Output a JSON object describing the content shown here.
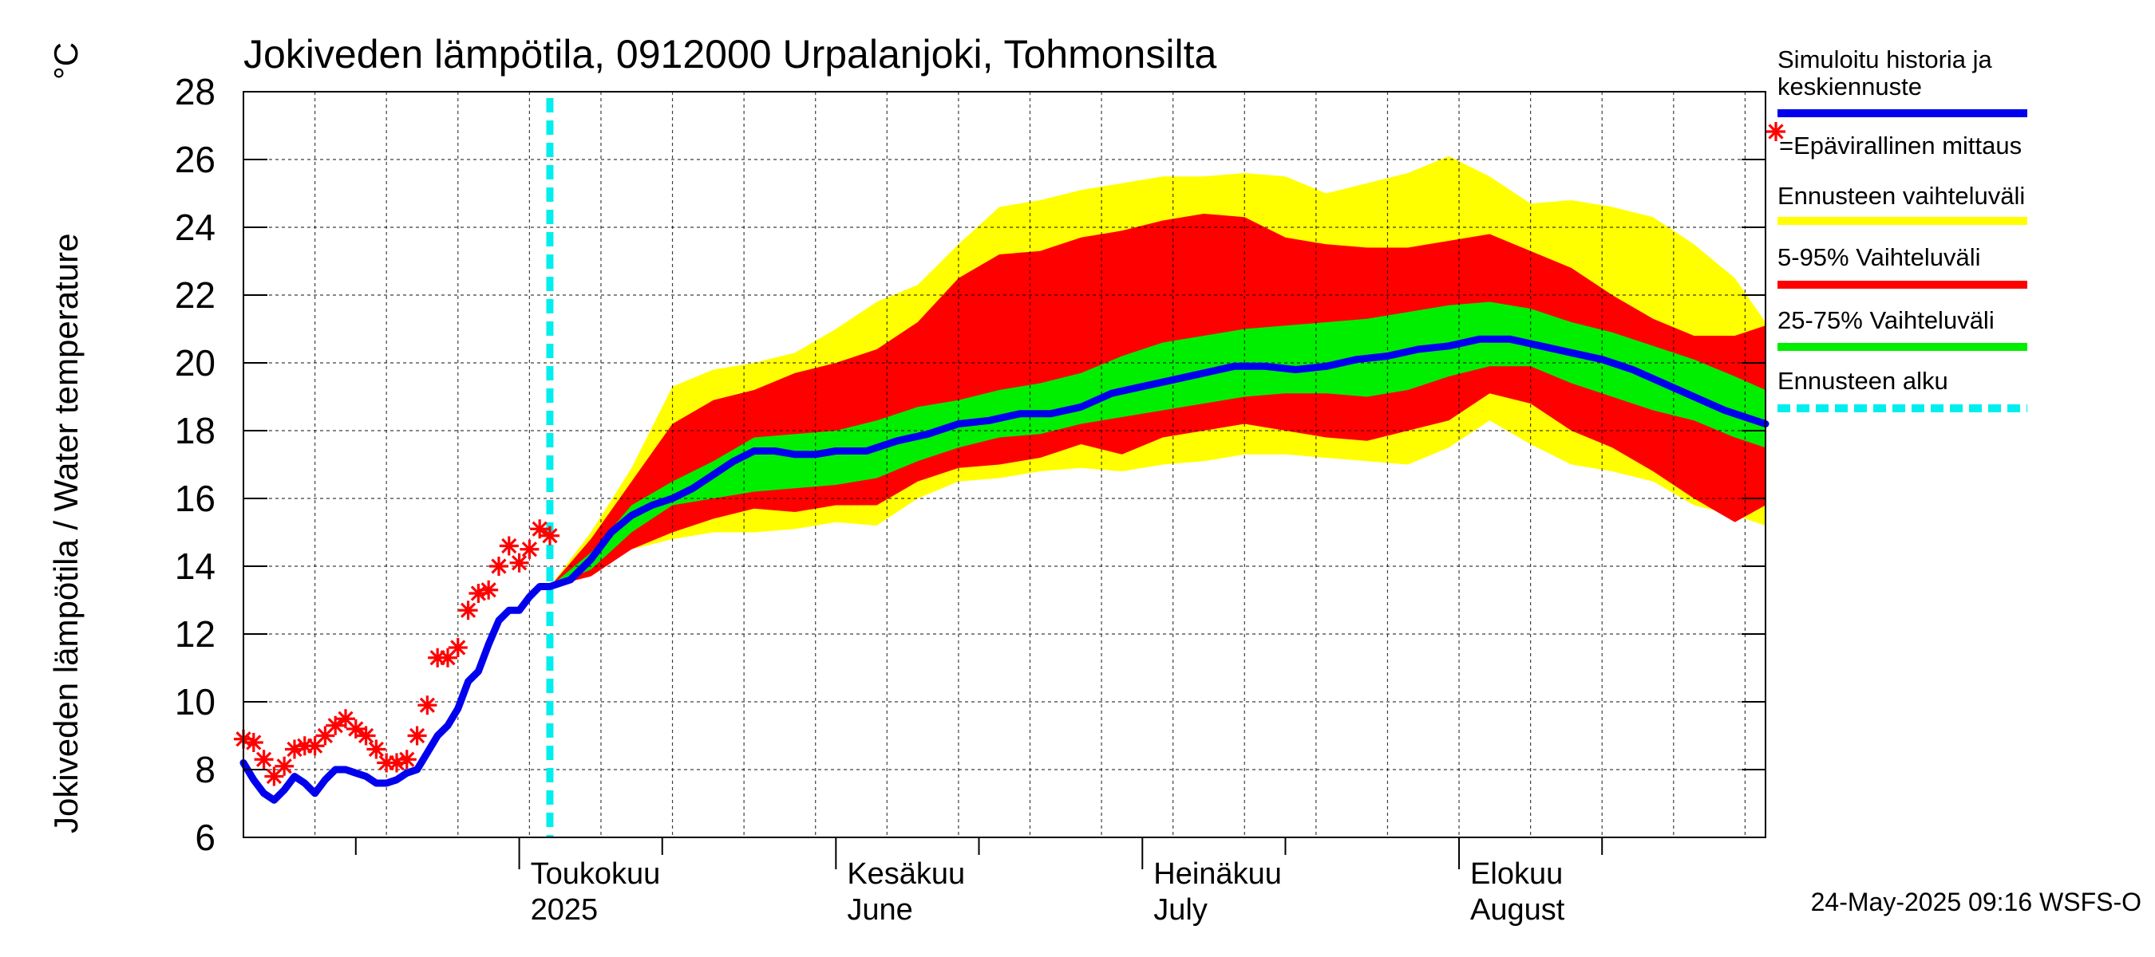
{
  "chart_data": {
    "type": "line",
    "title": "Jokiveden lämpötila, 0912000 Urpalanjoki, Tohmonsilta",
    "ylabel": "Jokiveden lämpötila / Water temperature",
    "yunit": "°C",
    "ylim": [
      6,
      28
    ],
    "yticks": [
      6,
      8,
      10,
      12,
      14,
      16,
      18,
      20,
      22,
      24,
      26,
      28
    ],
    "xlim": [
      "2025-04-04",
      "2025-08-31"
    ],
    "grid": true,
    "month_labels": [
      {
        "date": "2025-05-01",
        "line1": "Toukokuu",
        "line2": "2025"
      },
      {
        "date": "2025-06-01",
        "line1": "Kesäkuu",
        "line2": "June"
      },
      {
        "date": "2025-07-01",
        "line1": "Heinäkuu",
        "line2": "July"
      },
      {
        "date": "2025-08-01",
        "line1": "Elokuu",
        "line2": "August"
      }
    ],
    "forecast_start": "2025-05-04",
    "colors": {
      "median": "#0000ee",
      "obs": "#ff0000",
      "band_full": "#ffff00",
      "band_5_95": "#ff0000",
      "band_25_75": "#00ee00",
      "forecast_line": "#00eeee"
    },
    "observations": [
      [
        "2025-04-04",
        8.9
      ],
      [
        "2025-04-05",
        8.8
      ],
      [
        "2025-04-06",
        8.3
      ],
      [
        "2025-04-07",
        7.8
      ],
      [
        "2025-04-08",
        8.1
      ],
      [
        "2025-04-09",
        8.6
      ],
      [
        "2025-04-10",
        8.7
      ],
      [
        "2025-04-11",
        8.7
      ],
      [
        "2025-04-12",
        9.0
      ],
      [
        "2025-04-13",
        9.3
      ],
      [
        "2025-04-14",
        9.5
      ],
      [
        "2025-04-15",
        9.2
      ],
      [
        "2025-04-16",
        9.0
      ],
      [
        "2025-04-17",
        8.6
      ],
      [
        "2025-04-18",
        8.2
      ],
      [
        "2025-04-19",
        8.2
      ],
      [
        "2025-04-20",
        8.3
      ],
      [
        "2025-04-21",
        9.0
      ],
      [
        "2025-04-22",
        9.9
      ],
      [
        "2025-04-23",
        11.3
      ],
      [
        "2025-04-24",
        11.3
      ],
      [
        "2025-04-25",
        11.6
      ],
      [
        "2025-04-26",
        12.7
      ],
      [
        "2025-04-27",
        13.2
      ],
      [
        "2025-04-28",
        13.3
      ],
      [
        "2025-04-29",
        14.0
      ],
      [
        "2025-04-30",
        14.6
      ],
      [
        "2025-05-01",
        14.1
      ],
      [
        "2025-05-02",
        14.5
      ],
      [
        "2025-05-03",
        15.1
      ],
      [
        "2025-05-04",
        14.9
      ]
    ],
    "median_series": [
      [
        "2025-04-04",
        8.2
      ],
      [
        "2025-04-05",
        7.7
      ],
      [
        "2025-04-06",
        7.3
      ],
      [
        "2025-04-07",
        7.1
      ],
      [
        "2025-04-08",
        7.4
      ],
      [
        "2025-04-09",
        7.8
      ],
      [
        "2025-04-10",
        7.6
      ],
      [
        "2025-04-11",
        7.3
      ],
      [
        "2025-04-12",
        7.7
      ],
      [
        "2025-04-13",
        8.0
      ],
      [
        "2025-04-14",
        8.0
      ],
      [
        "2025-04-15",
        7.9
      ],
      [
        "2025-04-16",
        7.8
      ],
      [
        "2025-04-17",
        7.6
      ],
      [
        "2025-04-18",
        7.6
      ],
      [
        "2025-04-19",
        7.7
      ],
      [
        "2025-04-20",
        7.9
      ],
      [
        "2025-04-21",
        8.0
      ],
      [
        "2025-04-22",
        8.5
      ],
      [
        "2025-04-23",
        9.0
      ],
      [
        "2025-04-24",
        9.3
      ],
      [
        "2025-04-25",
        9.8
      ],
      [
        "2025-04-26",
        10.6
      ],
      [
        "2025-04-27",
        10.9
      ],
      [
        "2025-04-28",
        11.7
      ],
      [
        "2025-04-29",
        12.4
      ],
      [
        "2025-04-30",
        12.7
      ],
      [
        "2025-05-01",
        12.7
      ],
      [
        "2025-05-02",
        13.1
      ],
      [
        "2025-05-03",
        13.4
      ],
      [
        "2025-05-04",
        13.4
      ],
      [
        "2025-05-06",
        13.6
      ],
      [
        "2025-05-08",
        14.2
      ],
      [
        "2025-05-10",
        15.0
      ],
      [
        "2025-05-12",
        15.5
      ],
      [
        "2025-05-14",
        15.8
      ],
      [
        "2025-05-16",
        16.0
      ],
      [
        "2025-05-18",
        16.3
      ],
      [
        "2025-05-20",
        16.7
      ],
      [
        "2025-05-22",
        17.1
      ],
      [
        "2025-05-24",
        17.4
      ],
      [
        "2025-05-26",
        17.4
      ],
      [
        "2025-05-28",
        17.3
      ],
      [
        "2025-05-30",
        17.3
      ],
      [
        "2025-06-01",
        17.4
      ],
      [
        "2025-06-04",
        17.4
      ],
      [
        "2025-06-07",
        17.7
      ],
      [
        "2025-06-10",
        17.9
      ],
      [
        "2025-06-13",
        18.2
      ],
      [
        "2025-06-16",
        18.3
      ],
      [
        "2025-06-19",
        18.5
      ],
      [
        "2025-06-22",
        18.5
      ],
      [
        "2025-06-25",
        18.7
      ],
      [
        "2025-06-28",
        19.1
      ],
      [
        "2025-07-01",
        19.3
      ],
      [
        "2025-07-04",
        19.5
      ],
      [
        "2025-07-07",
        19.7
      ],
      [
        "2025-07-10",
        19.9
      ],
      [
        "2025-07-13",
        19.9
      ],
      [
        "2025-07-16",
        19.8
      ],
      [
        "2025-07-19",
        19.9
      ],
      [
        "2025-07-22",
        20.1
      ],
      [
        "2025-07-25",
        20.2
      ],
      [
        "2025-07-28",
        20.4
      ],
      [
        "2025-07-31",
        20.5
      ],
      [
        "2025-08-03",
        20.7
      ],
      [
        "2025-08-06",
        20.7
      ],
      [
        "2025-08-09",
        20.5
      ],
      [
        "2025-08-12",
        20.3
      ],
      [
        "2025-08-15",
        20.1
      ],
      [
        "2025-08-18",
        19.8
      ],
      [
        "2025-08-21",
        19.4
      ],
      [
        "2025-08-24",
        19.0
      ],
      [
        "2025-08-27",
        18.6
      ],
      [
        "2025-08-31",
        18.2
      ]
    ],
    "bands": {
      "dates": [
        "2025-05-04",
        "2025-05-08",
        "2025-05-12",
        "2025-05-16",
        "2025-05-20",
        "2025-05-24",
        "2025-05-28",
        "2025-06-01",
        "2025-06-05",
        "2025-06-09",
        "2025-06-13",
        "2025-06-17",
        "2025-06-21",
        "2025-06-25",
        "2025-06-29",
        "2025-07-03",
        "2025-07-07",
        "2025-07-11",
        "2025-07-15",
        "2025-07-19",
        "2025-07-23",
        "2025-07-27",
        "2025-07-31",
        "2025-08-04",
        "2025-08-08",
        "2025-08-12",
        "2025-08-16",
        "2025-08-20",
        "2025-08-24",
        "2025-08-28",
        "2025-08-31"
      ],
      "full_low": [
        13.4,
        13.8,
        14.5,
        14.8,
        15.0,
        15.0,
        15.1,
        15.3,
        15.2,
        16.0,
        16.5,
        16.6,
        16.8,
        16.9,
        16.8,
        17.0,
        17.1,
        17.3,
        17.3,
        17.2,
        17.1,
        17.0,
        17.5,
        18.3,
        17.6,
        17.0,
        16.8,
        16.5,
        15.8,
        15.5,
        15.2
      ],
      "p5": [
        13.4,
        13.7,
        14.5,
        15.0,
        15.4,
        15.7,
        15.6,
        15.8,
        15.8,
        16.5,
        16.9,
        17.0,
        17.2,
        17.6,
        17.3,
        17.8,
        18.0,
        18.2,
        18.0,
        17.8,
        17.7,
        18.0,
        18.3,
        19.1,
        18.8,
        18.0,
        17.5,
        16.8,
        16.0,
        15.3,
        15.8
      ],
      "p25": [
        13.4,
        13.9,
        15.0,
        15.8,
        16.0,
        16.2,
        16.3,
        16.4,
        16.6,
        17.1,
        17.5,
        17.8,
        17.9,
        18.2,
        18.4,
        18.6,
        18.8,
        19.0,
        19.1,
        19.1,
        19.0,
        19.2,
        19.6,
        19.9,
        19.9,
        19.4,
        19.0,
        18.6,
        18.3,
        17.8,
        17.5
      ],
      "p75": [
        13.4,
        14.4,
        15.8,
        16.5,
        17.1,
        17.8,
        17.9,
        18.0,
        18.3,
        18.7,
        18.9,
        19.2,
        19.4,
        19.7,
        20.2,
        20.6,
        20.8,
        21.0,
        21.1,
        21.2,
        21.3,
        21.5,
        21.7,
        21.8,
        21.6,
        21.2,
        20.9,
        20.5,
        20.1,
        19.6,
        19.2
      ],
      "p95": [
        13.4,
        14.8,
        16.5,
        18.2,
        18.9,
        19.2,
        19.7,
        20.0,
        20.4,
        21.2,
        22.5,
        23.2,
        23.3,
        23.7,
        23.9,
        24.2,
        24.4,
        24.3,
        23.7,
        23.5,
        23.4,
        23.4,
        23.6,
        23.8,
        23.3,
        22.8,
        22.0,
        21.3,
        20.8,
        20.8,
        21.1
      ],
      "full_high": [
        13.4,
        15.0,
        16.9,
        19.3,
        19.8,
        20.0,
        20.3,
        21.0,
        21.8,
        22.3,
        23.5,
        24.6,
        24.8,
        25.1,
        25.3,
        25.5,
        25.5,
        25.6,
        25.5,
        25.0,
        25.3,
        25.6,
        26.1,
        25.5,
        24.7,
        24.8,
        24.6,
        24.3,
        23.5,
        22.5,
        21.2
      ]
    },
    "legend": [
      {
        "key": "median",
        "text": "Simuloitu historia ja\nkeskiennuste"
      },
      {
        "key": "obs",
        "text": "=Epävirallinen mittaus"
      },
      {
        "key": "band_full",
        "text": "Ennusteen vaihteluväli"
      },
      {
        "key": "band_5_95",
        "text": "5-95% Vaihteluväli"
      },
      {
        "key": "band_25_75",
        "text": "25-75% Vaihteluväli"
      },
      {
        "key": "forecast_line",
        "text": "Ennusteen alku"
      }
    ],
    "footer": "24-May-2025 09:16 WSFS-O"
  }
}
